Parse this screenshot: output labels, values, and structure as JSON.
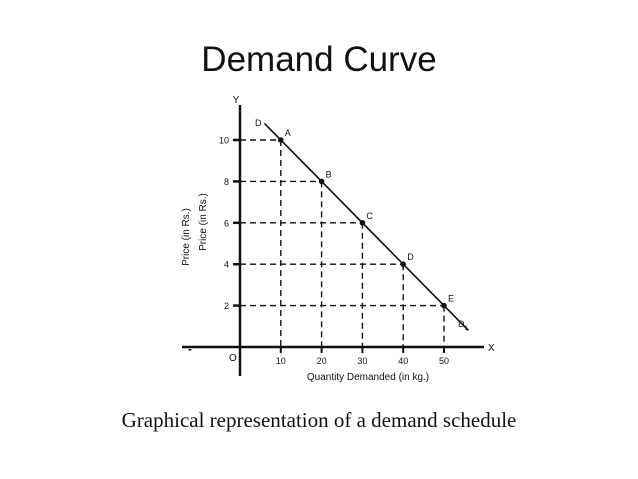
{
  "slide": {
    "title": "Demand Curve",
    "caption": "Graphical representation of a demand schedule",
    "stray_mark": "-"
  },
  "chart_data": {
    "type": "line",
    "x": [
      10,
      20,
      30,
      40,
      50
    ],
    "y": [
      10,
      8,
      6,
      4,
      2
    ],
    "point_labels": [
      "A",
      "B",
      "C",
      "D",
      "E"
    ],
    "x_ticks": [
      10,
      20,
      30,
      40,
      50
    ],
    "y_ticks": [
      2,
      4,
      6,
      8,
      10
    ],
    "xlim": [
      0,
      55
    ],
    "ylim": [
      0,
      12
    ],
    "xlabel": "Quantity Demanded (in kg.)",
    "ylabel": "Price (in Rs.)",
    "ylabel_duplicate": "Price (in Rs.)",
    "x_axis_letter": "X",
    "y_axis_letter": "Y",
    "origin_label": "O",
    "curve_start_label": "D",
    "curve_end_label": "D",
    "curve_end_subscript": "1",
    "curve_extent_x": [
      6,
      56
    ],
    "gridlines": "dashed guides to each point",
    "colors": {
      "line": "#111111"
    }
  }
}
